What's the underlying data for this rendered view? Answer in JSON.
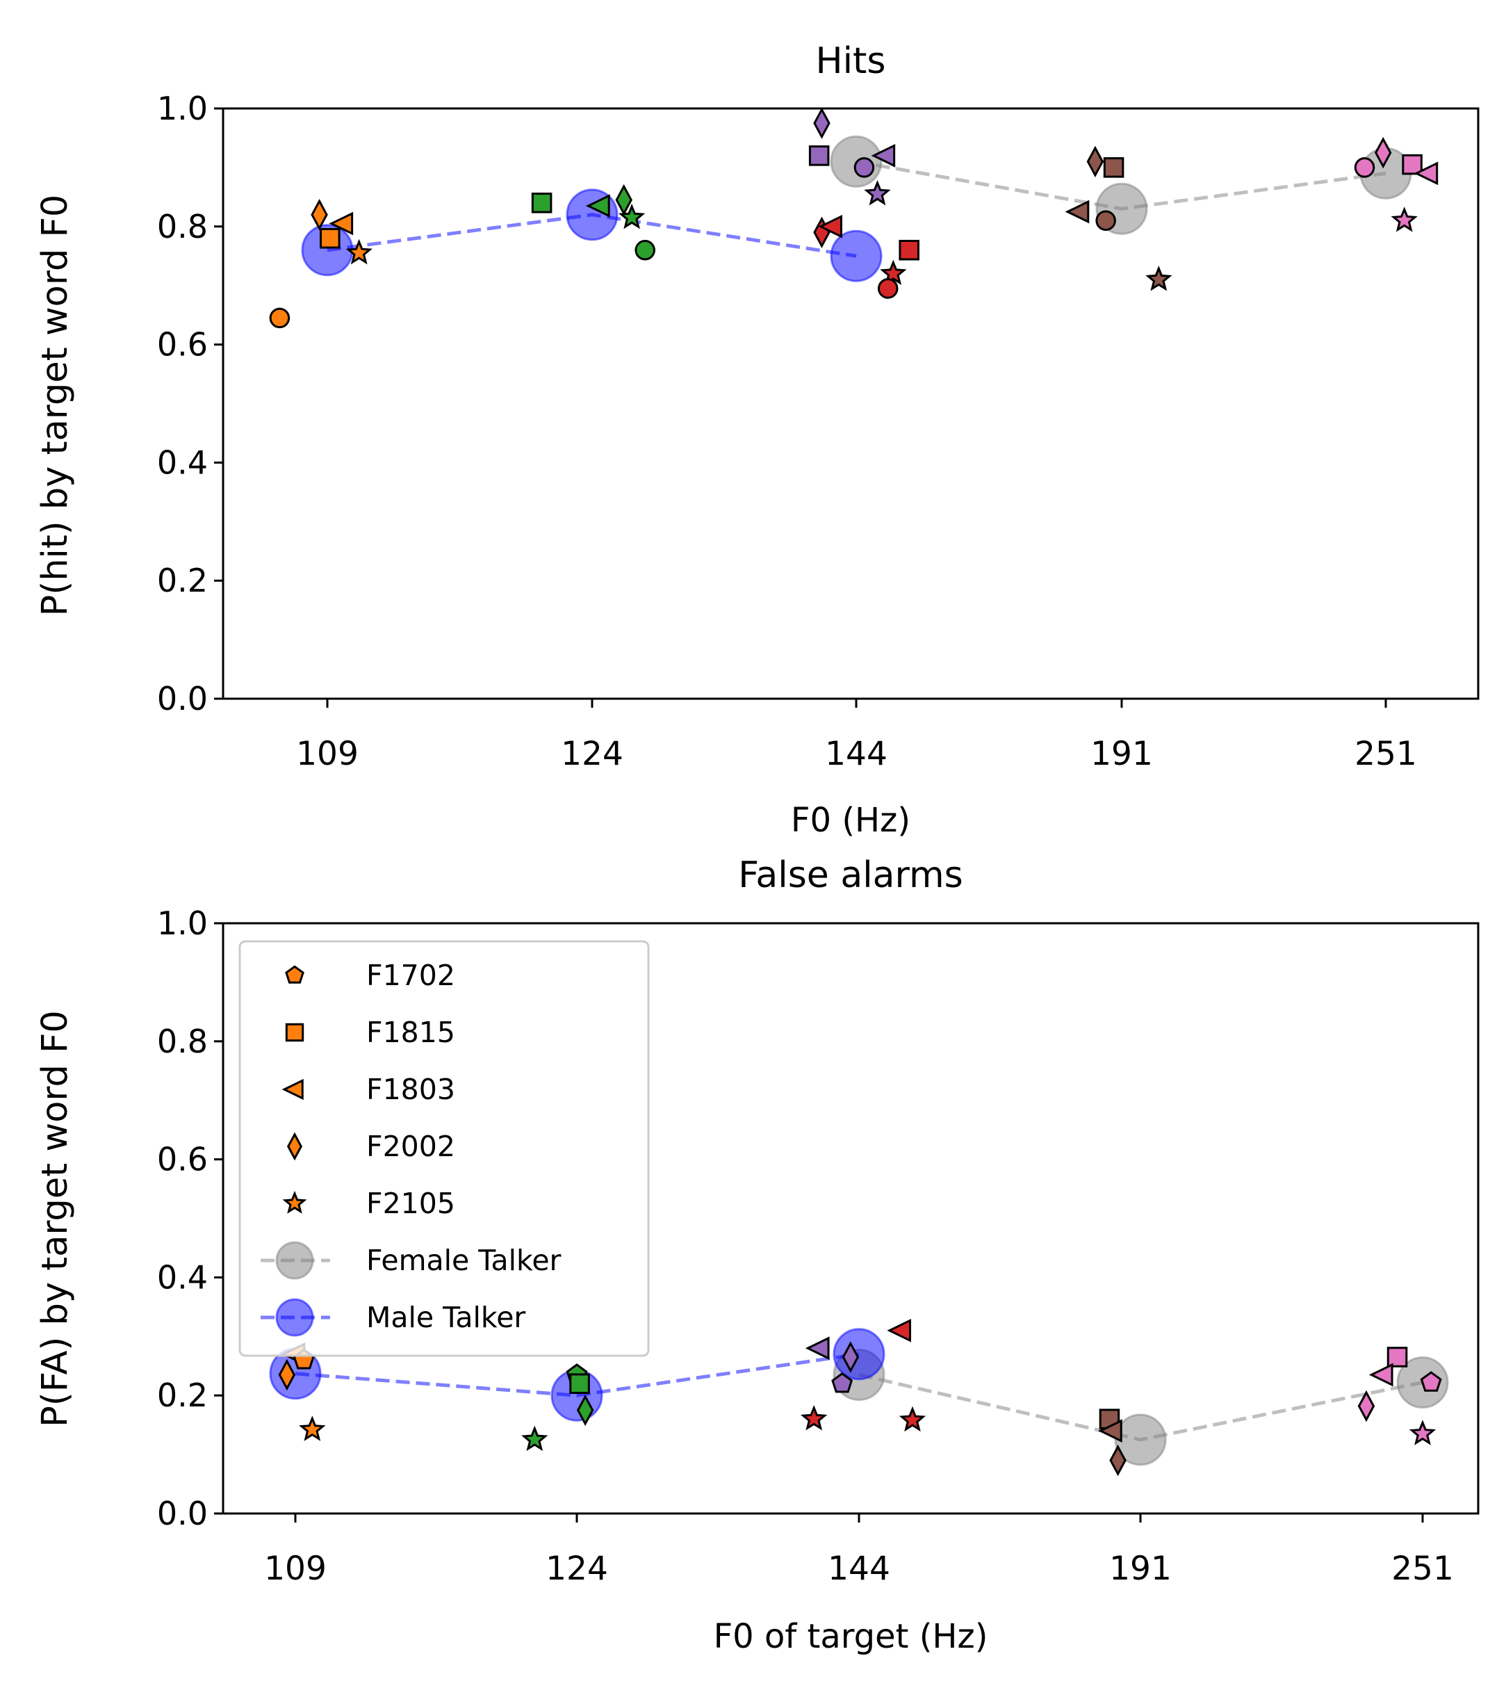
{
  "chart_data": [
    {
      "type": "scatter",
      "title": "Hits",
      "xlabel": "F0 (Hz)",
      "ylabel": "P(hit) by target word F0",
      "ylim": [
        0,
        1
      ],
      "yticks": [
        "0.0",
        "0.2",
        "0.4",
        "0.6",
        "0.8",
        "1.0"
      ],
      "categories": [
        "109",
        "124",
        "144",
        "191",
        "251"
      ],
      "grid": false,
      "legend": "none",
      "talker_means": [
        {
          "name": "Female Talker",
          "color": "#808080",
          "points": [
            {
              "cat": 2,
              "offset": 0.0,
              "y": 0.91
            },
            {
              "cat": 3,
              "offset": 0.0,
              "y": 0.83
            },
            {
              "cat": 4,
              "offset": 0.0,
              "y": 0.89
            }
          ]
        },
        {
          "name": "Male Talker",
          "color": "#0000ff",
          "points": [
            {
              "cat": 0,
              "offset": 0.0,
              "y": 0.76
            },
            {
              "cat": 1,
              "offset": 0.0,
              "y": 0.82
            },
            {
              "cat": 2,
              "offset": 0.0,
              "y": 0.75
            }
          ]
        }
      ],
      "listener_points": [
        {
          "cat": 0,
          "offset": -0.18,
          "y": 0.645,
          "marker": "circle",
          "color": "#ff7f0e"
        },
        {
          "cat": 0,
          "offset": -0.03,
          "y": 0.82,
          "marker": "diamond",
          "color": "#ff7f0e"
        },
        {
          "cat": 0,
          "offset": 0.06,
          "y": 0.805,
          "marker": "triangle-left",
          "color": "#ff7f0e"
        },
        {
          "cat": 0,
          "offset": 0.01,
          "y": 0.78,
          "marker": "square",
          "color": "#ff7f0e"
        },
        {
          "cat": 0,
          "offset": 0.12,
          "y": 0.755,
          "marker": "star",
          "color": "#ff7f0e"
        },
        {
          "cat": 1,
          "offset": -0.19,
          "y": 0.84,
          "marker": "square",
          "color": "#2ca02c"
        },
        {
          "cat": 1,
          "offset": 0.12,
          "y": 0.845,
          "marker": "diamond",
          "color": "#2ca02c"
        },
        {
          "cat": 1,
          "offset": 0.03,
          "y": 0.835,
          "marker": "triangle-left",
          "color": "#2ca02c"
        },
        {
          "cat": 1,
          "offset": 0.15,
          "y": 0.815,
          "marker": "star",
          "color": "#2ca02c"
        },
        {
          "cat": 1,
          "offset": 0.2,
          "y": 0.76,
          "marker": "circle",
          "color": "#2ca02c"
        },
        {
          "cat": 2,
          "offset": -0.13,
          "y": 0.975,
          "marker": "diamond",
          "color": "#9467bd"
        },
        {
          "cat": 2,
          "offset": -0.14,
          "y": 0.92,
          "marker": "square",
          "color": "#9467bd"
        },
        {
          "cat": 2,
          "offset": 0.11,
          "y": 0.92,
          "marker": "triangle-left",
          "color": "#9467bd"
        },
        {
          "cat": 2,
          "offset": 0.03,
          "y": 0.9,
          "marker": "circle",
          "color": "#9467bd"
        },
        {
          "cat": 2,
          "offset": 0.08,
          "y": 0.855,
          "marker": "star",
          "color": "#9467bd"
        },
        {
          "cat": 2,
          "offset": -0.13,
          "y": 0.79,
          "marker": "diamond",
          "color": "#d62728"
        },
        {
          "cat": 2,
          "offset": -0.09,
          "y": 0.8,
          "marker": "triangle-left",
          "color": "#d62728"
        },
        {
          "cat": 2,
          "offset": 0.2,
          "y": 0.76,
          "marker": "square",
          "color": "#d62728"
        },
        {
          "cat": 2,
          "offset": 0.14,
          "y": 0.72,
          "marker": "star",
          "color": "#d62728"
        },
        {
          "cat": 2,
          "offset": 0.12,
          "y": 0.695,
          "marker": "circle",
          "color": "#d62728"
        },
        {
          "cat": 3,
          "offset": -0.1,
          "y": 0.91,
          "marker": "diamond",
          "color": "#8c564b"
        },
        {
          "cat": 3,
          "offset": -0.03,
          "y": 0.9,
          "marker": "square",
          "color": "#8c564b"
        },
        {
          "cat": 3,
          "offset": -0.16,
          "y": 0.825,
          "marker": "triangle-left",
          "color": "#8c564b"
        },
        {
          "cat": 3,
          "offset": -0.06,
          "y": 0.81,
          "marker": "circle",
          "color": "#8c564b"
        },
        {
          "cat": 3,
          "offset": 0.14,
          "y": 0.71,
          "marker": "star",
          "color": "#8c564b"
        },
        {
          "cat": 4,
          "offset": -0.08,
          "y": 0.9,
          "marker": "circle",
          "color": "#e377c2"
        },
        {
          "cat": 4,
          "offset": -0.01,
          "y": 0.925,
          "marker": "diamond",
          "color": "#e377c2"
        },
        {
          "cat": 4,
          "offset": 0.1,
          "y": 0.905,
          "marker": "square",
          "color": "#e377c2"
        },
        {
          "cat": 4,
          "offset": 0.16,
          "y": 0.89,
          "marker": "triangle-left",
          "color": "#e377c2"
        },
        {
          "cat": 4,
          "offset": 0.07,
          "y": 0.81,
          "marker": "star",
          "color": "#e377c2"
        }
      ]
    },
    {
      "type": "scatter",
      "title": "False alarms",
      "xlabel": "F0 of target (Hz)",
      "ylabel": "P(FA) by target word F0",
      "ylim": [
        0,
        1
      ],
      "yticks": [
        "0.0",
        "0.2",
        "0.4",
        "0.6",
        "0.8",
        "1.0"
      ],
      "categories": [
        "109",
        "124",
        "144",
        "191",
        "251"
      ],
      "grid": false,
      "legend": "upper left",
      "legend_entries": [
        {
          "label": "F1702",
          "marker": "pentagon",
          "color": "#ff7f0e"
        },
        {
          "label": "F1815",
          "marker": "square",
          "color": "#ff7f0e"
        },
        {
          "label": "F1803",
          "marker": "triangle-left",
          "color": "#ff7f0e"
        },
        {
          "label": "F2002",
          "marker": "diamond",
          "color": "#ff7f0e"
        },
        {
          "label": "F2105",
          "marker": "star",
          "color": "#ff7f0e"
        },
        {
          "label": "Female Talker",
          "marker": "big-circle-line",
          "color": "#808080"
        },
        {
          "label": "Male Talker",
          "marker": "big-circle-line",
          "color": "#0000ff"
        }
      ],
      "talker_means": [
        {
          "name": "Female Talker",
          "color": "#808080",
          "points": [
            {
              "cat": 2,
              "offset": 0.0,
              "y": 0.235
            },
            {
              "cat": 3,
              "offset": 0.0,
              "y": 0.125
            },
            {
              "cat": 4,
              "offset": 0.0,
              "y": 0.222
            }
          ]
        },
        {
          "name": "Male Talker",
          "color": "#0000ff",
          "points": [
            {
              "cat": 0,
              "offset": 0.0,
              "y": 0.237
            },
            {
              "cat": 1,
              "offset": 0.0,
              "y": 0.2
            },
            {
              "cat": 2,
              "offset": 0.0,
              "y": 0.27
            }
          ]
        }
      ],
      "listener_points": [
        {
          "cat": 0,
          "offset": 0.0,
          "y": 0.27,
          "marker": "triangle-left",
          "color": "#ff7f0e"
        },
        {
          "cat": 0,
          "offset": 0.03,
          "y": 0.26,
          "marker": "pentagon",
          "color": "#ff7f0e"
        },
        {
          "cat": 0,
          "offset": -0.03,
          "y": 0.235,
          "marker": "diamond",
          "color": "#ff7f0e"
        },
        {
          "cat": 0,
          "offset": 0.06,
          "y": 0.142,
          "marker": "star",
          "color": "#ff7f0e"
        },
        {
          "cat": 1,
          "offset": 0.0,
          "y": 0.235,
          "marker": "pentagon",
          "color": "#2ca02c"
        },
        {
          "cat": 1,
          "offset": 0.01,
          "y": 0.22,
          "marker": "square",
          "color": "#2ca02c"
        },
        {
          "cat": 1,
          "offset": 0.03,
          "y": 0.175,
          "marker": "diamond",
          "color": "#2ca02c"
        },
        {
          "cat": 1,
          "offset": -0.15,
          "y": 0.125,
          "marker": "star",
          "color": "#2ca02c"
        },
        {
          "cat": 2,
          "offset": -0.14,
          "y": 0.28,
          "marker": "triangle-left",
          "color": "#9467bd"
        },
        {
          "cat": 2,
          "offset": -0.03,
          "y": 0.265,
          "marker": "diamond",
          "color": "#9467bd"
        },
        {
          "cat": 2,
          "offset": -0.06,
          "y": 0.22,
          "marker": "pentagon",
          "color": "#9467bd"
        },
        {
          "cat": 2,
          "offset": 0.15,
          "y": 0.31,
          "marker": "triangle-left",
          "color": "#d62728"
        },
        {
          "cat": 2,
          "offset": -0.16,
          "y": 0.16,
          "marker": "star",
          "color": "#d62728"
        },
        {
          "cat": 2,
          "offset": 0.19,
          "y": 0.158,
          "marker": "star",
          "color": "#d62728"
        },
        {
          "cat": 3,
          "offset": -0.11,
          "y": 0.16,
          "marker": "square",
          "color": "#8c564b"
        },
        {
          "cat": 3,
          "offset": -0.1,
          "y": 0.14,
          "marker": "triangle-left",
          "color": "#8c564b"
        },
        {
          "cat": 3,
          "offset": -0.08,
          "y": 0.09,
          "marker": "diamond",
          "color": "#8c564b"
        },
        {
          "cat": 4,
          "offset": -0.09,
          "y": 0.265,
          "marker": "square",
          "color": "#e377c2"
        },
        {
          "cat": 4,
          "offset": -0.14,
          "y": 0.235,
          "marker": "triangle-left",
          "color": "#e377c2"
        },
        {
          "cat": 4,
          "offset": 0.03,
          "y": 0.222,
          "marker": "pentagon",
          "color": "#e377c2"
        },
        {
          "cat": 4,
          "offset": -0.2,
          "y": 0.182,
          "marker": "diamond",
          "color": "#e377c2"
        },
        {
          "cat": 4,
          "offset": 0.0,
          "y": 0.135,
          "marker": "star",
          "color": "#e377c2"
        }
      ]
    }
  ]
}
